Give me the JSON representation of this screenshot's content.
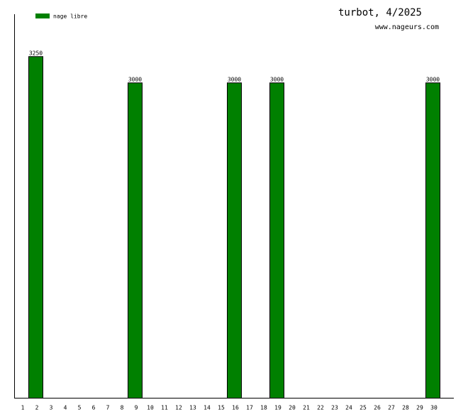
{
  "chart_data": {
    "type": "bar",
    "title": "turbot, 4/2025",
    "subtitle": "www.nageurs.com",
    "categories": [
      "1",
      "2",
      "3",
      "4",
      "5",
      "6",
      "7",
      "8",
      "9",
      "10",
      "11",
      "12",
      "13",
      "14",
      "15",
      "16",
      "17",
      "18",
      "19",
      "20",
      "21",
      "22",
      "23",
      "24",
      "25",
      "26",
      "27",
      "28",
      "29",
      "30"
    ],
    "series": [
      {
        "name": "nage libre",
        "color": "#008000",
        "values": [
          null,
          3250,
          null,
          null,
          null,
          null,
          null,
          null,
          3000,
          null,
          null,
          null,
          null,
          null,
          null,
          3000,
          null,
          null,
          3000,
          null,
          null,
          null,
          null,
          null,
          null,
          null,
          null,
          null,
          null,
          3000
        ]
      }
    ],
    "ylim": [
      0,
      3650
    ],
    "legend": "top-left"
  }
}
